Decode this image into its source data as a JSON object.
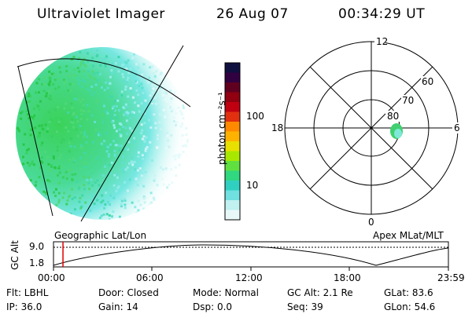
{
  "header": {
    "instrument": "Ultraviolet Imager",
    "date": "26 Aug 07",
    "time": "00:34:29 UT"
  },
  "colorbar": {
    "unit_label": "photon cm⁻²s⁻¹",
    "ticks": [
      "100",
      "10"
    ],
    "colors": [
      "#101040",
      "#300040",
      "#600020",
      "#900010",
      "#c00010",
      "#e03010",
      "#ff8a00",
      "#ffb300",
      "#e8e000",
      "#a8e800",
      "#60e040",
      "#30d880",
      "#30d0c0",
      "#70e0e0",
      "#c0f0f0",
      "#e8f8f8"
    ],
    "tick_levels": [
      100,
      10
    ]
  },
  "polar": {
    "lat_labels": [
      "60",
      "70",
      "80"
    ],
    "mlt_labels": {
      "top": "12",
      "bottom": "0",
      "left": "18",
      "right": "6"
    }
  },
  "timeline": {
    "axis_label": "GC Alt",
    "ymax": "9.0",
    "ymin": "1.8",
    "left_label": "Geographic Lat/Lon",
    "right_label": "Apex MLat/MLT",
    "ticks": [
      "00:00",
      "06:00",
      "12:00",
      "18:00",
      "23:59"
    ],
    "current_time_fraction": 0.024
  },
  "status": {
    "row1": {
      "flt": "Flt: LBHL",
      "door": "Door: Closed",
      "mode": "Mode: Normal",
      "gcalt": "GC Alt: 2.1 Re",
      "glat": "GLat:  83.6"
    },
    "row2": {
      "ip": "IP: 36.0",
      "gain": "Gain: 14",
      "dsp": "Dsp:     0.0",
      "seq": "Seq: 39",
      "glon": "GLon:  54.6"
    }
  }
}
